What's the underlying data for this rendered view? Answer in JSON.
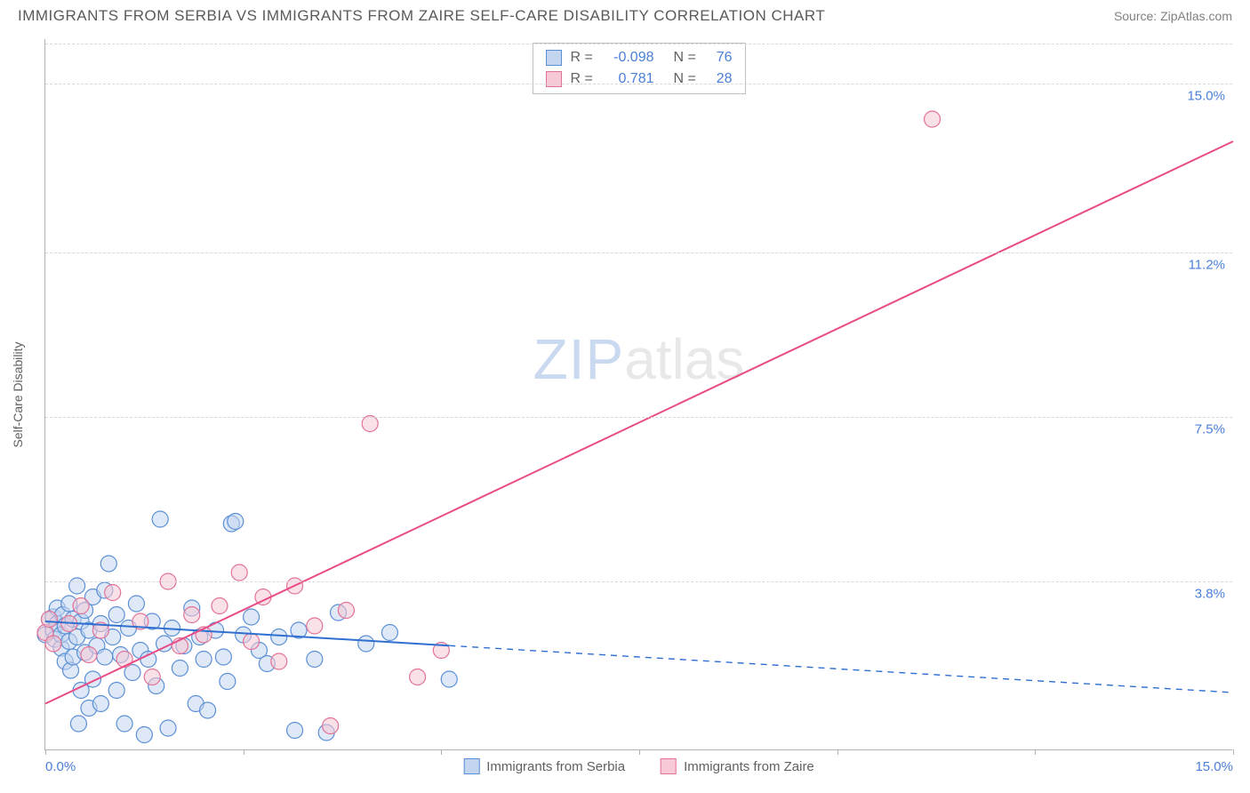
{
  "header": {
    "title": "IMMIGRANTS FROM SERBIA VS IMMIGRANTS FROM ZAIRE SELF-CARE DISABILITY CORRELATION CHART",
    "source": "Source: ZipAtlas.com"
  },
  "watermark": {
    "part1": "ZIP",
    "part2": "atlas"
  },
  "chart": {
    "type": "scatter",
    "y_label": "Self-Care Disability",
    "xlim": [
      0,
      15
    ],
    "ylim": [
      0,
      16
    ],
    "x_tick_positions": [
      0,
      2.5,
      5,
      7.5,
      10,
      12.5,
      15
    ],
    "x_tick_labels_visible": {
      "0": "0.0%",
      "15": "15.0%"
    },
    "y_gridlines": [
      {
        "value": 3.8,
        "label": "3.8%"
      },
      {
        "value": 7.5,
        "label": "7.5%"
      },
      {
        "value": 11.2,
        "label": "11.2%"
      },
      {
        "value": 15.0,
        "label": "15.0%"
      }
    ],
    "background_color": "#ffffff",
    "grid_color": "#d8d8d8",
    "axis_color": "#b0b0b0",
    "tick_label_color": "#4a7fd8",
    "label_color": "#606060",
    "point_radius": 9,
    "point_stroke_width": 1.2,
    "line_width": 2,
    "series": [
      {
        "name": "Immigrants from Serbia",
        "fill": "#c3d5ef",
        "stroke": "#5b8fd6",
        "fill_opacity": 0.55,
        "r_value": "-0.098",
        "n_value": "76",
        "trend": {
          "x1": 0,
          "y1": 2.9,
          "x2": 15,
          "y2": 1.3,
          "solid_until_x": 5.1,
          "color": "#2f6fd0"
        },
        "points": [
          [
            0.0,
            2.6
          ],
          [
            0.05,
            2.95
          ],
          [
            0.1,
            2.7
          ],
          [
            0.1,
            3.0
          ],
          [
            0.12,
            2.5
          ],
          [
            0.15,
            2.85
          ],
          [
            0.15,
            3.2
          ],
          [
            0.2,
            2.3
          ],
          [
            0.2,
            2.6
          ],
          [
            0.22,
            3.05
          ],
          [
            0.25,
            2.0
          ],
          [
            0.25,
            2.8
          ],
          [
            0.3,
            2.45
          ],
          [
            0.3,
            3.3
          ],
          [
            0.32,
            1.8
          ],
          [
            0.35,
            2.95
          ],
          [
            0.35,
            2.1
          ],
          [
            0.4,
            3.7
          ],
          [
            0.4,
            2.55
          ],
          [
            0.42,
            0.6
          ],
          [
            0.45,
            2.9
          ],
          [
            0.45,
            1.35
          ],
          [
            0.5,
            3.15
          ],
          [
            0.5,
            2.2
          ],
          [
            0.55,
            2.7
          ],
          [
            0.55,
            0.95
          ],
          [
            0.6,
            3.45
          ],
          [
            0.6,
            1.6
          ],
          [
            0.65,
            2.35
          ],
          [
            0.7,
            2.85
          ],
          [
            0.7,
            1.05
          ],
          [
            0.75,
            3.6
          ],
          [
            0.75,
            2.1
          ],
          [
            0.8,
            4.2
          ],
          [
            0.85,
            2.55
          ],
          [
            0.9,
            1.35
          ],
          [
            0.9,
            3.05
          ],
          [
            0.95,
            2.15
          ],
          [
            1.0,
            0.6
          ],
          [
            1.05,
            2.75
          ],
          [
            1.1,
            1.75
          ],
          [
            1.15,
            3.3
          ],
          [
            1.2,
            2.25
          ],
          [
            1.25,
            0.35
          ],
          [
            1.3,
            2.05
          ],
          [
            1.35,
            2.9
          ],
          [
            1.4,
            1.45
          ],
          [
            1.45,
            5.2
          ],
          [
            1.5,
            2.4
          ],
          [
            1.55,
            0.5
          ],
          [
            1.6,
            2.75
          ],
          [
            1.7,
            1.85
          ],
          [
            1.75,
            2.35
          ],
          [
            1.85,
            3.2
          ],
          [
            1.9,
            1.05
          ],
          [
            1.95,
            2.55
          ],
          [
            2.0,
            2.05
          ],
          [
            2.05,
            0.9
          ],
          [
            2.15,
            2.7
          ],
          [
            2.25,
            2.1
          ],
          [
            2.3,
            1.55
          ],
          [
            2.35,
            5.1
          ],
          [
            2.4,
            5.15
          ],
          [
            2.5,
            2.6
          ],
          [
            2.6,
            3.0
          ],
          [
            2.7,
            2.25
          ],
          [
            2.8,
            1.95
          ],
          [
            2.95,
            2.55
          ],
          [
            3.15,
            0.45
          ],
          [
            3.2,
            2.7
          ],
          [
            3.4,
            2.05
          ],
          [
            3.55,
            0.4
          ],
          [
            3.7,
            3.1
          ],
          [
            4.05,
            2.4
          ],
          [
            4.35,
            2.65
          ],
          [
            5.1,
            1.6
          ]
        ]
      },
      {
        "name": "Immigrants from Zaire",
        "fill": "#f6c9d5",
        "stroke": "#e27296",
        "fill_opacity": 0.55,
        "r_value": "0.781",
        "n_value": "28",
        "trend": {
          "x1": 0,
          "y1": 1.05,
          "x2": 15,
          "y2": 13.7,
          "solid_until_x": 15,
          "color": "#e84b86"
        },
        "points": [
          [
            0.0,
            2.65
          ],
          [
            0.05,
            2.95
          ],
          [
            0.1,
            2.4
          ],
          [
            0.3,
            2.85
          ],
          [
            0.45,
            3.25
          ],
          [
            0.55,
            2.15
          ],
          [
            0.7,
            2.7
          ],
          [
            0.85,
            3.55
          ],
          [
            1.0,
            2.05
          ],
          [
            1.2,
            2.9
          ],
          [
            1.35,
            1.65
          ],
          [
            1.55,
            3.8
          ],
          [
            1.7,
            2.35
          ],
          [
            1.85,
            3.05
          ],
          [
            2.0,
            2.6
          ],
          [
            2.2,
            3.25
          ],
          [
            2.45,
            4.0
          ],
          [
            2.6,
            2.45
          ],
          [
            2.75,
            3.45
          ],
          [
            2.95,
            2.0
          ],
          [
            3.15,
            3.7
          ],
          [
            3.4,
            2.8
          ],
          [
            3.6,
            0.55
          ],
          [
            3.8,
            3.15
          ],
          [
            4.1,
            7.35
          ],
          [
            4.7,
            1.65
          ],
          [
            5.0,
            2.25
          ],
          [
            11.2,
            14.2
          ]
        ]
      }
    ],
    "legend_bottom": [
      {
        "label": "Immigrants from Serbia",
        "fill": "#c3d5ef",
        "stroke": "#5b8fd6"
      },
      {
        "label": "Immigrants from Zaire",
        "fill": "#f6c9d5",
        "stroke": "#e27296"
      }
    ]
  }
}
